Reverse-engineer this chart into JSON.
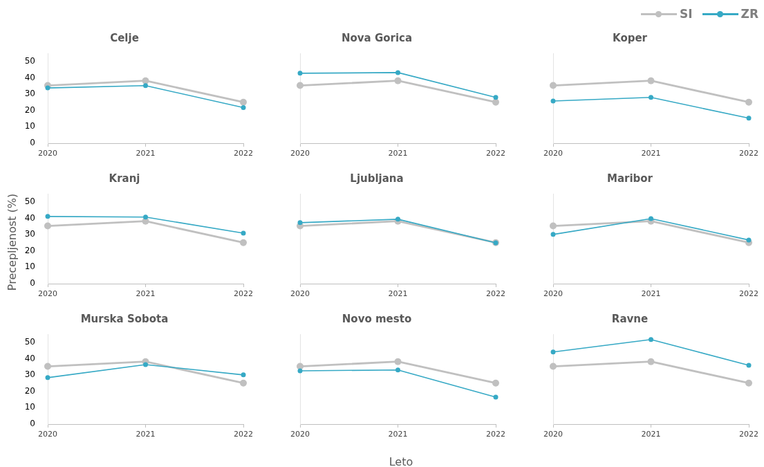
{
  "chart_data": [
    {
      "type": "line",
      "title": "Celje",
      "categories": [
        "2020",
        "2021",
        "2022"
      ],
      "ylim": [
        0,
        55
      ],
      "yticks": [
        0,
        10,
        20,
        30,
        40,
        50
      ],
      "marker": "circle",
      "legend": "top right",
      "series": [
        {
          "name": "SI",
          "color": "#c0c0c0",
          "values": [
            35.3,
            38.2,
            25.1
          ]
        },
        {
          "name": "ZR",
          "color": "#36a9c5",
          "values": [
            33.8,
            35.2,
            21.8
          ]
        }
      ]
    },
    {
      "type": "line",
      "title": "Nova Gorica",
      "categories": [
        "2020",
        "2021",
        "2022"
      ],
      "ylim": [
        0,
        55
      ],
      "yticks": [
        0,
        10,
        20,
        30,
        40,
        50
      ],
      "marker": "circle",
      "tick_labels": "x",
      "series": [
        {
          "color": "#c0c0c0",
          "values": [
            35.3,
            38.2,
            25.1
          ]
        },
        {
          "color": "#36a9c5",
          "values": [
            42.8,
            43.2,
            28.0
          ]
        }
      ]
    },
    {
      "type": "line",
      "title": "Koper",
      "categories": [
        "2020",
        "2021",
        "2022"
      ],
      "ylim": [
        0,
        55
      ],
      "yticks": [
        0,
        10,
        20,
        30,
        40,
        50
      ],
      "marker": "circle",
      "tick_labels": "x",
      "series": [
        {
          "color": "#c0c0c0",
          "values": [
            35.3,
            38.2,
            25.1
          ]
        },
        {
          "color": "#36a9c5",
          "values": [
            25.8,
            28.0,
            15.3
          ]
        }
      ]
    },
    {
      "type": "line",
      "title": "Kranj",
      "ylabel": "Precepljenost (%)",
      "categories": [
        "2020",
        "2021",
        "2022"
      ],
      "ylim": [
        0,
        55
      ],
      "yticks": [
        0,
        10,
        20,
        30,
        40,
        50
      ],
      "marker": "circle",
      "series": [
        {
          "color": "#c0c0c0",
          "values": [
            35.3,
            38.2,
            25.1
          ]
        },
        {
          "color": "#36a9c5",
          "values": [
            41.1,
            40.7,
            30.9
          ]
        }
      ]
    },
    {
      "type": "line",
      "title": "Ljubljana",
      "categories": [
        "2020",
        "2021",
        "2022"
      ],
      "ylim": [
        0,
        55
      ],
      "yticks": [
        0,
        10,
        20,
        30,
        40,
        50
      ],
      "marker": "circle",
      "tick_labels": "x",
      "series": [
        {
          "color": "#c0c0c0",
          "values": [
            35.3,
            38.2,
            25.1
          ]
        },
        {
          "color": "#36a9c5",
          "values": [
            37.3,
            39.4,
            25.0
          ]
        }
      ]
    },
    {
      "type": "line",
      "title": "Maribor",
      "categories": [
        "2020",
        "2021",
        "2022"
      ],
      "ylim": [
        0,
        55
      ],
      "yticks": [
        0,
        10,
        20,
        30,
        40,
        50
      ],
      "marker": "circle",
      "tick_labels": "x",
      "series": [
        {
          "color": "#c0c0c0",
          "values": [
            35.3,
            38.2,
            25.1
          ]
        },
        {
          "color": "#36a9c5",
          "values": [
            30.1,
            39.8,
            26.7
          ]
        }
      ]
    },
    {
      "type": "line",
      "title": "Murska Sobota",
      "categories": [
        "2020",
        "2021",
        "2022"
      ],
      "ylim": [
        0,
        55
      ],
      "yticks": [
        0,
        10,
        20,
        30,
        40,
        50
      ],
      "marker": "circle",
      "series": [
        {
          "color": "#c0c0c0",
          "values": [
            35.3,
            38.2,
            25.1
          ]
        },
        {
          "color": "#36a9c5",
          "values": [
            28.4,
            36.4,
            30.1
          ]
        }
      ]
    },
    {
      "type": "line",
      "title": "Novo mesto",
      "xlabel": "Leto",
      "categories": [
        "2020",
        "2021",
        "2022"
      ],
      "ylim": [
        0,
        55
      ],
      "yticks": [
        0,
        10,
        20,
        30,
        40,
        50
      ],
      "marker": "circle",
      "tick_labels": "x",
      "series": [
        {
          "color": "#c0c0c0",
          "values": [
            35.3,
            38.2,
            25.1
          ]
        },
        {
          "color": "#36a9c5",
          "values": [
            32.6,
            33.1,
            16.5
          ]
        }
      ]
    },
    {
      "type": "line",
      "title": "Ravne",
      "categories": [
        "2020",
        "2021",
        "2022"
      ],
      "ylim": [
        0,
        55
      ],
      "yticks": [
        0,
        10,
        20,
        30,
        40,
        50
      ],
      "marker": "circle",
      "tick_labels": "x",
      "series": [
        {
          "color": "#c0c0c0",
          "values": [
            35.3,
            38.2,
            25.1
          ]
        },
        {
          "color": "#36a9c5",
          "values": [
            44.1,
            51.7,
            36.0
          ]
        }
      ]
    }
  ]
}
